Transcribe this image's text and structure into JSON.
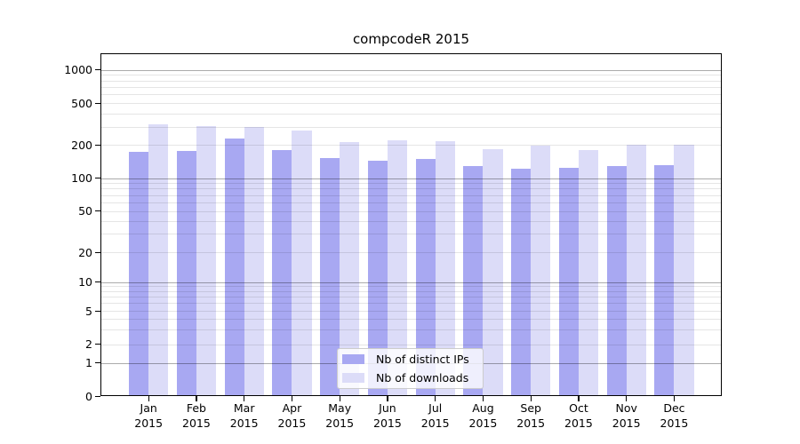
{
  "chart_data": {
    "type": "bar",
    "title": "compcodeR 2015",
    "categories": [
      "Jan 2015",
      "Feb 2015",
      "Mar 2015",
      "Apr 2015",
      "May 2015",
      "Jun 2015",
      "Jul 2015",
      "Aug 2015",
      "Sep 2015",
      "Oct 2015",
      "Nov 2015",
      "Dec 2015"
    ],
    "series": [
      {
        "name": "Nb of distinct IPs",
        "color": "#a8a8f2",
        "values": [
          173,
          175,
          230,
          181,
          153,
          145,
          148,
          128,
          122,
          124,
          128,
          132
        ]
      },
      {
        "name": "Nb of downloads",
        "color": "#dcdcf8",
        "values": [
          318,
          302,
          296,
          275,
          213,
          221,
          217,
          182,
          199,
          180,
          200,
          202
        ]
      }
    ],
    "xlabel": "",
    "ylabel": "",
    "y_ticks": [
      0,
      1,
      2,
      5,
      10,
      20,
      50,
      100,
      200,
      500,
      1000
    ],
    "yscale": "log",
    "ylim": [
      0,
      1400
    ],
    "grid": "horizontal, log minor + decade major",
    "legend_position": "lower center"
  }
}
